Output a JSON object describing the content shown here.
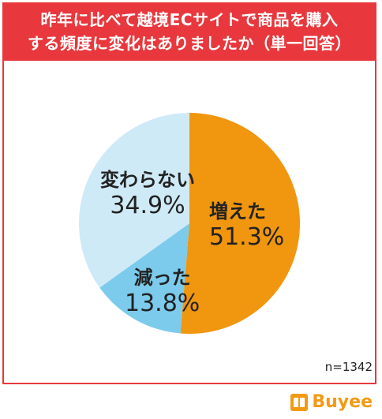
{
  "header": {
    "title_line1": "昨年に比べて越境ECサイトで商品を購入",
    "title_line2": "する頻度に変化はありましたか（単一回答）"
  },
  "chart_data": {
    "type": "pie",
    "title": "昨年に比べて越境ECサイトで商品を購入する頻度に変化はありましたか（単一回答）",
    "slices": [
      {
        "label": "増えた",
        "value": 51.3,
        "value_label": "51.3%",
        "color": "#f0960f"
      },
      {
        "label": "減った",
        "value": 13.8,
        "value_label": "13.8%",
        "color": "#7ccbec"
      },
      {
        "label": "変わらない",
        "value": 34.9,
        "value_label": "34.9%",
        "color": "#cfeaf7"
      }
    ],
    "start": "12 o'clock",
    "direction": "clockwise",
    "note": "n=1342"
  },
  "brand": {
    "name": "Buyee",
    "icon": "buyee-logo-icon",
    "color": "#f39a14"
  }
}
